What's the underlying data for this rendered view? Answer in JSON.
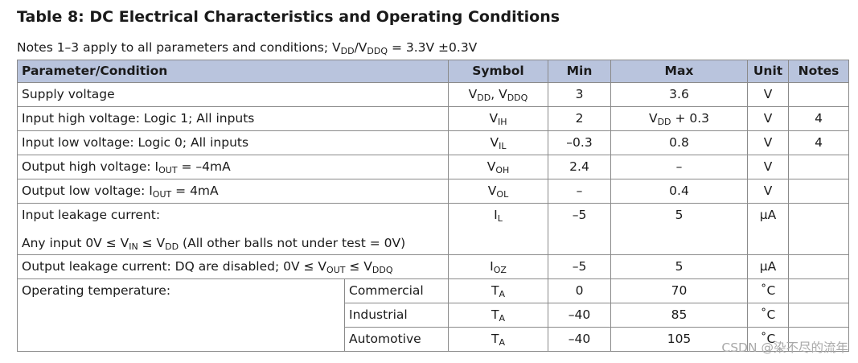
{
  "title": "Table 8: DC Electrical Characteristics and Operating Conditions",
  "note": [
    "Notes 1–3 apply to all parameters and conditions; V",
    "DD",
    "/V",
    "DDQ",
    " = 3.3V ±0.3V"
  ],
  "table": {
    "headers": [
      "Parameter/Condition",
      "Symbol",
      "Min",
      "Max",
      "Unit",
      "Notes"
    ],
    "rows": [
      {
        "parameter": [
          "Supply voltage"
        ],
        "symbol": [
          "V",
          "DD",
          ", V",
          "DDQ"
        ],
        "min": [
          "3"
        ],
        "max": [
          "3.6"
        ],
        "unit": [
          "V"
        ]
      },
      {
        "parameter": [
          "Input high voltage: Logic 1; All inputs"
        ],
        "symbol": [
          "V",
          "IH"
        ],
        "min": [
          "2"
        ],
        "max": [
          "V",
          "DD",
          " + 0.3"
        ],
        "unit": [
          "V"
        ],
        "notes": [
          "4"
        ]
      },
      {
        "parameter": [
          "Input low voltage: Logic 0; All inputs"
        ],
        "symbol": [
          "V",
          "IL"
        ],
        "min": [
          "–0.3"
        ],
        "max": [
          "0.8"
        ],
        "unit": [
          "V"
        ],
        "notes": [
          "4"
        ]
      },
      {
        "parameter": [
          "Output high voltage: I",
          "OUT",
          " = –4mA"
        ],
        "symbol": [
          "V",
          "OH"
        ],
        "min": [
          "2.4"
        ],
        "max": [
          "–"
        ],
        "unit": [
          "V"
        ]
      },
      {
        "parameter": [
          "Output low voltage: I",
          "OUT",
          " = 4mA"
        ],
        "symbol": [
          "V",
          "OL"
        ],
        "min": [
          "–"
        ],
        "max": [
          "0.4"
        ],
        "unit": [
          "V"
        ]
      },
      {
        "parameter": [
          "Input leakage current:"
        ],
        "condition": [
          "Any input 0V ≤ V",
          "IN",
          " ≤ V",
          "DD",
          " (All other balls not under test = 0V)"
        ],
        "symbol": [
          "I",
          "L"
        ],
        "min": [
          "–5"
        ],
        "max": [
          "5"
        ],
        "unit": [
          "µA"
        ]
      },
      {
        "parameter": [
          "Output leakage current: DQ are disabled; 0V ≤ V",
          "OUT",
          " ≤ V",
          "DDQ"
        ],
        "symbol": [
          "I",
          "OZ"
        ],
        "min": [
          "–5"
        ],
        "max": [
          "5"
        ],
        "unit": [
          "µA"
        ]
      }
    ],
    "temperature": {
      "parameter": [
        "Operating temperature:"
      ],
      "rows": [
        {
          "grade": [
            "Commercial"
          ],
          "symbol": [
            "T",
            "A"
          ],
          "min": [
            "0"
          ],
          "max": [
            "70"
          ],
          "unit": [
            "˚C"
          ]
        },
        {
          "grade": [
            "Industrial"
          ],
          "symbol": [
            "T",
            "A"
          ],
          "min": [
            "–40"
          ],
          "max": [
            "85"
          ],
          "unit": [
            "˚C"
          ]
        },
        {
          "grade": [
            "Automotive"
          ],
          "symbol": [
            "T",
            "A"
          ],
          "min": [
            "–40"
          ],
          "max": [
            "105"
          ],
          "unit": [
            "˚C"
          ]
        }
      ]
    }
  },
  "watermark": "CSDN @染不尽的流年"
}
